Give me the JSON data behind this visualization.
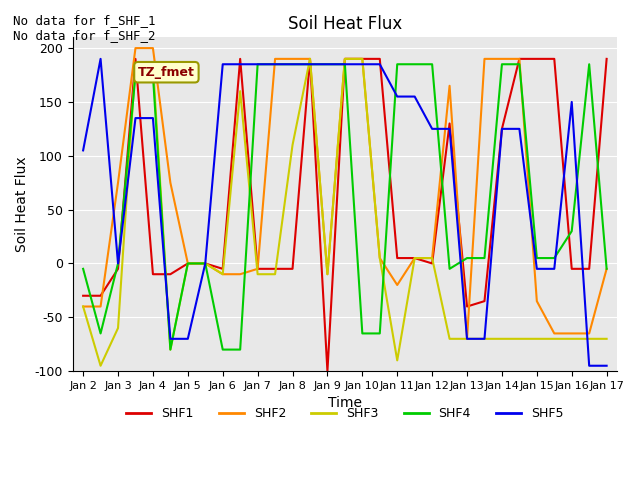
{
  "title": "Soil Heat Flux",
  "ylabel": "Soil Heat Flux",
  "xlabel": "Time",
  "ylim": [
    -100,
    210
  ],
  "yticks": [
    -100,
    -50,
    0,
    50,
    100,
    150,
    200
  ],
  "annotation_text": "No data for f_SHF_1\nNo data for f_SHF_2",
  "legend_label": "TZ_fmet",
  "legend_entries": [
    "SHF1",
    "SHF2",
    "SHF3",
    "SHF4",
    "SHF5"
  ],
  "colors": {
    "SHF1": "#dd0000",
    "SHF2": "#ff8800",
    "SHF3": "#cccc00",
    "SHF4": "#00cc00",
    "SHF5": "#0000ee"
  },
  "background_color": "#e8e8e8",
  "x_dates": [
    "Jan 2",
    "Jan 3",
    "Jan 4",
    "Jan 5",
    "Jan 6",
    "Jan 7",
    "Jan 8",
    "Jan 9",
    "Jan 10",
    "Jan 11",
    "Jan 12",
    "Jan 13",
    "Jan 14",
    "Jan 15",
    "Jan 16",
    "Jan 17"
  ],
  "x_values": [
    0,
    0.5,
    1,
    1.5,
    2,
    2.5,
    3,
    3.5,
    4,
    4.5,
    5,
    5.5,
    6,
    6.5,
    7,
    7.5,
    8,
    8.5,
    9,
    9.5,
    10,
    10.5,
    11,
    11.5,
    12,
    12.5,
    13,
    13.5,
    14,
    14.5,
    15
  ],
  "SHF1": [
    -30,
    -30,
    -5,
    190,
    -10,
    -10,
    0,
    0,
    -5,
    190,
    -5,
    -5,
    -5,
    190,
    -100,
    190,
    190,
    190,
    5,
    5,
    0,
    130,
    -40,
    -35,
    125,
    190,
    190,
    190,
    -5,
    -5,
    190
  ],
  "SHF2": [
    -40,
    -40,
    75,
    200,
    200,
    75,
    0,
    0,
    -10,
    -10,
    -5,
    190,
    190,
    190,
    -10,
    190,
    190,
    5,
    -20,
    5,
    5,
    165,
    -70,
    190,
    190,
    190,
    -35,
    -65,
    -65,
    -65,
    -5
  ],
  "SHF3": [
    -40,
    -95,
    -60,
    185,
    185,
    -80,
    0,
    0,
    -10,
    160,
    -10,
    -10,
    110,
    190,
    -10,
    190,
    190,
    5,
    -90,
    5,
    5,
    -70,
    -70,
    -70,
    -70,
    -70,
    -70,
    -70,
    -70,
    -70,
    -70
  ],
  "SHF4": [
    -5,
    -65,
    0,
    175,
    175,
    -80,
    0,
    0,
    -80,
    -80,
    185,
    185,
    185,
    185,
    185,
    185,
    -65,
    -65,
    185,
    185,
    185,
    -5,
    5,
    5,
    185,
    185,
    5,
    5,
    30,
    185,
    -5
  ],
  "SHF5": [
    105,
    190,
    0,
    135,
    135,
    -70,
    -70,
    0,
    185,
    185,
    185,
    185,
    185,
    185,
    185,
    185,
    185,
    185,
    155,
    155,
    125,
    125,
    -70,
    -70,
    125,
    125,
    -5,
    -5,
    150,
    -95,
    -95
  ]
}
